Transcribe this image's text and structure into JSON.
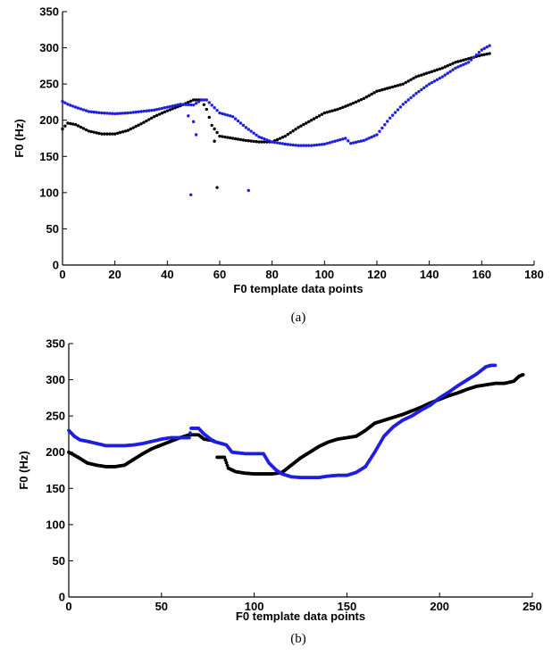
{
  "chart_data": [
    {
      "type": "scatter",
      "panel_label": "(a)",
      "xlabel": "F0 template data points",
      "ylabel": "F0 (Hz)",
      "xlim": [
        0,
        180
      ],
      "ylim": [
        0,
        350
      ],
      "xticks": [
        0,
        20,
        40,
        60,
        80,
        100,
        120,
        140,
        160,
        180
      ],
      "yticks": [
        0,
        50,
        100,
        150,
        200,
        250,
        300,
        350
      ],
      "grid": false,
      "colors": {
        "black": "#000000",
        "blue": "#1f1fe0"
      },
      "series": [
        {
          "color": "black",
          "keypoints": [
            [
              0,
              188
            ],
            [
              2,
              196
            ],
            [
              5,
              194
            ],
            [
              10,
              185
            ],
            [
              15,
              181
            ],
            [
              20,
              181
            ],
            [
              25,
              186
            ],
            [
              30,
              195
            ],
            [
              35,
              205
            ],
            [
              40,
              213
            ],
            [
              45,
              220
            ],
            [
              50,
              228
            ],
            [
              53,
              228
            ],
            [
              55,
              215
            ],
            [
              57,
              193
            ],
            [
              60,
              178
            ],
            [
              65,
              175
            ],
            [
              70,
              172
            ],
            [
              75,
              170
            ],
            [
              80,
              170
            ],
            [
              85,
              178
            ],
            [
              90,
              190
            ],
            [
              95,
              200
            ],
            [
              100,
              210
            ],
            [
              105,
              215
            ],
            [
              110,
              222
            ],
            [
              115,
              230
            ],
            [
              120,
              240
            ],
            [
              125,
              245
            ],
            [
              130,
              250
            ],
            [
              135,
              260
            ],
            [
              140,
              266
            ],
            [
              145,
              272
            ],
            [
              150,
              280
            ],
            [
              155,
              285
            ],
            [
              160,
              290
            ],
            [
              163,
              292
            ]
          ],
          "outliers": [
            [
              58,
              171
            ],
            [
              59,
              107
            ]
          ]
        },
        {
          "color": "blue",
          "keypoints": [
            [
              0,
              226
            ],
            [
              2,
              222
            ],
            [
              5,
              218
            ],
            [
              10,
              212
            ],
            [
              15,
              210
            ],
            [
              20,
              209
            ],
            [
              25,
              210
            ],
            [
              30,
              212
            ],
            [
              35,
              214
            ],
            [
              40,
              218
            ],
            [
              45,
              222
            ],
            [
              50,
              221
            ],
            [
              53,
              228
            ],
            [
              55,
              228
            ],
            [
              60,
              210
            ],
            [
              65,
              205
            ],
            [
              70,
              190
            ],
            [
              75,
              177
            ],
            [
              80,
              170
            ],
            [
              85,
              167
            ],
            [
              90,
              165
            ],
            [
              95,
              165
            ],
            [
              100,
              167
            ],
            [
              105,
              172
            ],
            [
              108,
              175
            ],
            [
              110,
              168
            ],
            [
              115,
              172
            ],
            [
              120,
              180
            ],
            [
              125,
              203
            ],
            [
              130,
              222
            ],
            [
              135,
              237
            ],
            [
              140,
              250
            ],
            [
              145,
              260
            ],
            [
              150,
              272
            ],
            [
              155,
              280
            ],
            [
              160,
              297
            ],
            [
              163,
              303
            ]
          ],
          "outliers": [
            [
              48,
              206
            ],
            [
              50,
              198
            ],
            [
              49,
              97
            ],
            [
              51,
              180
            ],
            [
              71,
              103
            ]
          ]
        }
      ]
    },
    {
      "type": "scatter",
      "panel_label": "(b)",
      "xlabel": "F0 template data points",
      "ylabel": "F0 (Hz)",
      "xlim": [
        0,
        250
      ],
      "ylim": [
        0,
        350
      ],
      "xticks": [
        0,
        50,
        100,
        150,
        200,
        250
      ],
      "yticks": [
        0,
        50,
        100,
        150,
        200,
        250,
        300,
        350
      ],
      "grid": false,
      "colors": {
        "black": "#000000",
        "blue": "#1f1fe0"
      },
      "series": [
        {
          "color": "black",
          "segments": [
            [
              [
                0,
                200
              ],
              [
                5,
                193
              ],
              [
                10,
                185
              ],
              [
                15,
                182
              ],
              [
                20,
                180
              ],
              [
                25,
                180
              ],
              [
                30,
                182
              ],
              [
                35,
                190
              ],
              [
                40,
                198
              ],
              [
                45,
                205
              ],
              [
                50,
                210
              ],
              [
                55,
                215
              ],
              [
                60,
                220
              ],
              [
                65,
                224
              ],
              [
                70,
                224
              ],
              [
                73,
                218
              ],
              [
                78,
                216
              ]
            ],
            [
              [
                80,
                193
              ],
              [
                84,
                193
              ],
              [
                86,
                178
              ],
              [
                90,
                173
              ],
              [
                95,
                171
              ],
              [
                100,
                170
              ],
              [
                105,
                170
              ],
              [
                110,
                170
              ],
              [
                115,
                172
              ],
              [
                120,
                182
              ],
              [
                125,
                192
              ],
              [
                130,
                200
              ],
              [
                135,
                208
              ],
              [
                140,
                214
              ],
              [
                145,
                218
              ],
              [
                150,
                220
              ],
              [
                155,
                222
              ],
              [
                160,
                230
              ],
              [
                165,
                240
              ],
              [
                170,
                244
              ],
              [
                175,
                248
              ],
              [
                180,
                252
              ],
              [
                185,
                257
              ],
              [
                190,
                262
              ],
              [
                195,
                268
              ],
              [
                200,
                273
              ],
              [
                205,
                278
              ],
              [
                210,
                282
              ],
              [
                215,
                287
              ],
              [
                220,
                291
              ],
              [
                225,
                293
              ],
              [
                230,
                295
              ],
              [
                235,
                295
              ],
              [
                240,
                298
              ],
              [
                243,
                305
              ],
              [
                245,
                307
              ]
            ]
          ]
        },
        {
          "color": "blue",
          "segments": [
            [
              [
                0,
                230
              ],
              [
                3,
                222
              ],
              [
                6,
                217
              ],
              [
                10,
                215
              ],
              [
                15,
                212
              ],
              [
                20,
                209
              ],
              [
                25,
                209
              ],
              [
                30,
                209
              ],
              [
                35,
                210
              ],
              [
                40,
                212
              ],
              [
                45,
                215
              ],
              [
                50,
                218
              ],
              [
                55,
                220
              ],
              [
                60,
                220
              ],
              [
                65,
                220
              ],
              [
                66,
                233
              ],
              [
                70,
                233
              ],
              [
                73,
                225
              ],
              [
                78,
                215
              ],
              [
                85,
                210
              ],
              [
                88,
                200
              ],
              [
                95,
                198
              ],
              [
                100,
                198
              ],
              [
                105,
                198
              ],
              [
                108,
                185
              ],
              [
                112,
                175
              ],
              [
                115,
                170
              ],
              [
                120,
                166
              ],
              [
                125,
                165
              ],
              [
                130,
                165
              ],
              [
                135,
                165
              ],
              [
                140,
                167
              ],
              [
                145,
                168
              ],
              [
                150,
                168
              ],
              [
                155,
                172
              ],
              [
                160,
                180
              ],
              [
                165,
                200
              ],
              [
                170,
                222
              ],
              [
                175,
                235
              ],
              [
                180,
                244
              ],
              [
                185,
                250
              ],
              [
                190,
                258
              ],
              [
                195,
                265
              ],
              [
                200,
                275
              ],
              [
                205,
                283
              ],
              [
                210,
                292
              ],
              [
                215,
                300
              ],
              [
                220,
                308
              ],
              [
                225,
                318
              ],
              [
                228,
                320
              ],
              [
                230,
                320
              ]
            ]
          ]
        }
      ]
    }
  ]
}
